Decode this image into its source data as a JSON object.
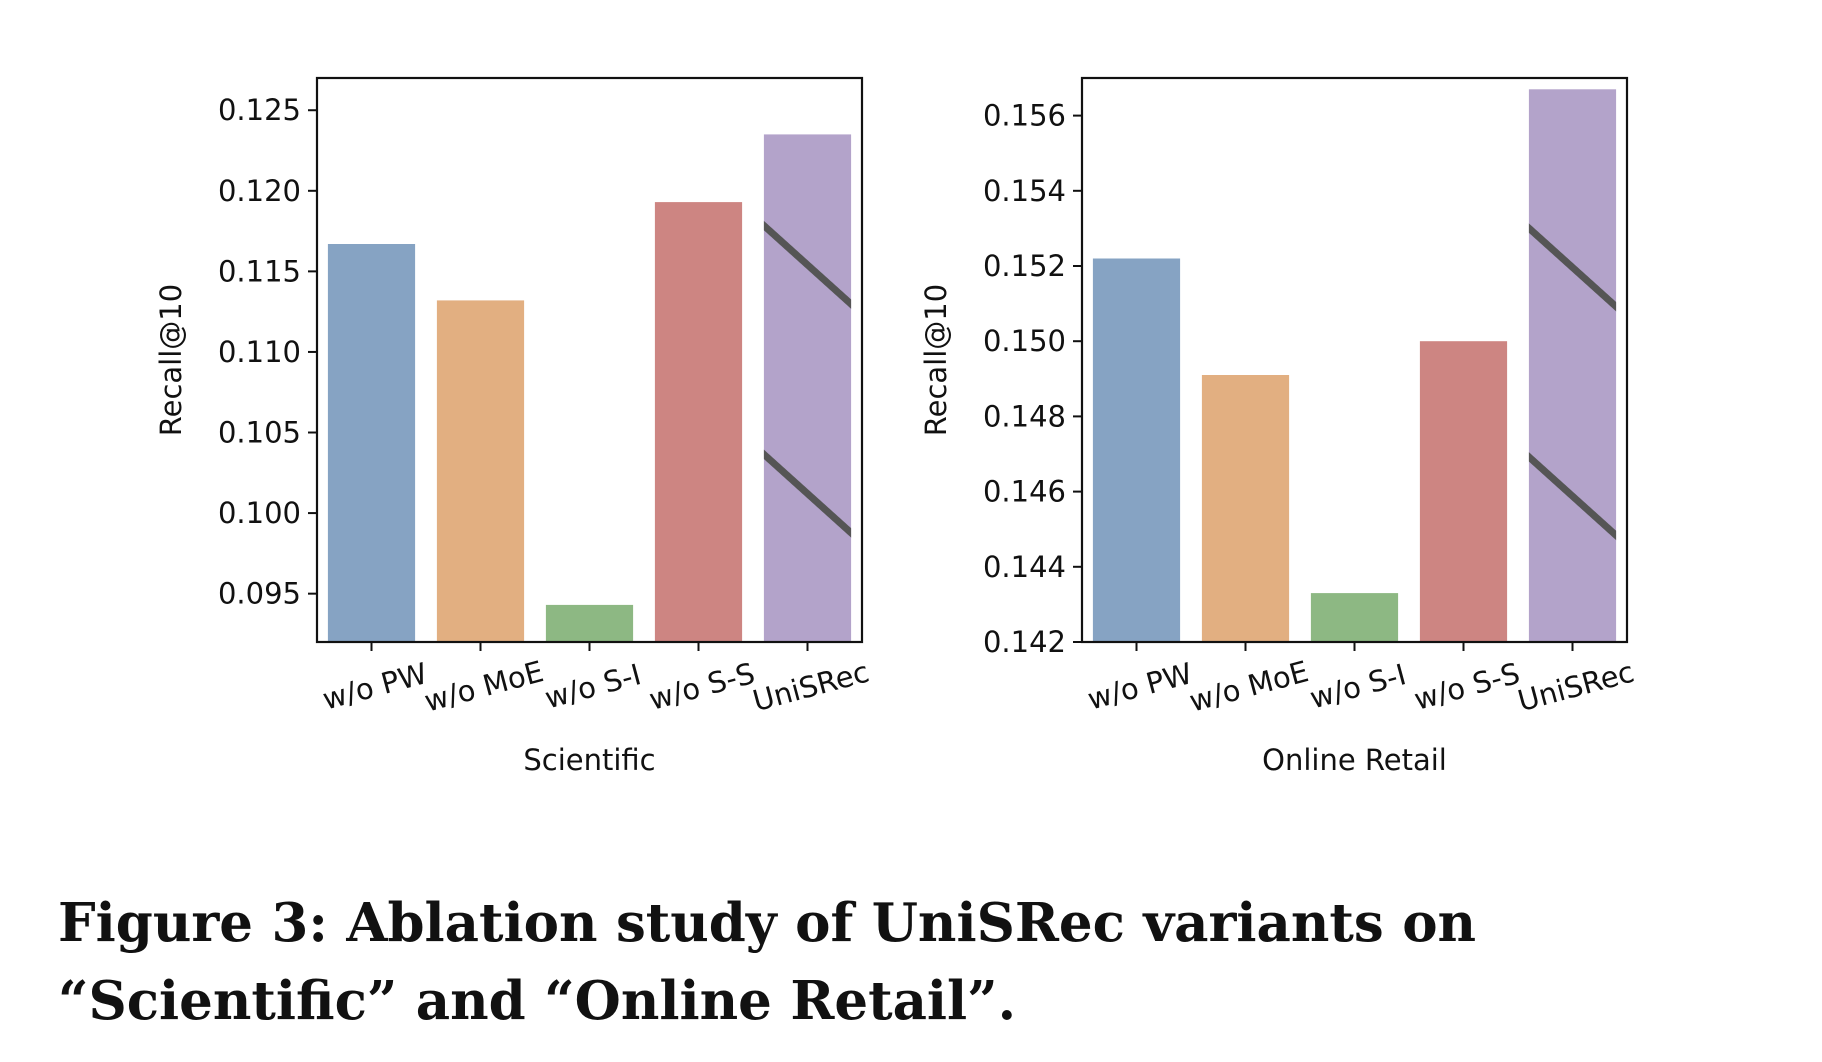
{
  "chart_data": [
    {
      "type": "bar",
      "xlabel": "Scientific",
      "ylabel": "Recall@10",
      "categories": [
        "w/o PW",
        "w/o MoE",
        "w/o S-I",
        "w/o S-S",
        "UniSRec"
      ],
      "values": [
        0.1167,
        0.1132,
        0.0943,
        0.1193,
        0.1235
      ],
      "ylim": [
        0.092,
        0.127
      ],
      "yticks": [
        0.095,
        0.1,
        0.105,
        0.11,
        0.115,
        0.12,
        0.125
      ],
      "ytick_labels": [
        "0.095",
        "0.100",
        "0.105",
        "0.110",
        "0.115",
        "0.120",
        "0.125"
      ],
      "colors": [
        "#86A3C3",
        "#E2AF81",
        "#8DB883",
        "#CD8582",
        "#B3A3CA"
      ],
      "hatched_category": "UniSRec",
      "grid": false,
      "legend": "none"
    },
    {
      "type": "bar",
      "xlabel": "Online Retail",
      "ylabel": "Recall@10",
      "categories": [
        "w/o PW",
        "w/o MoE",
        "w/o S-I",
        "w/o S-S",
        "UniSRec"
      ],
      "values": [
        0.1522,
        0.1491,
        0.1433,
        0.15,
        0.1567
      ],
      "ylim": [
        0.142,
        0.157
      ],
      "yticks": [
        0.142,
        0.144,
        0.146,
        0.148,
        0.15,
        0.152,
        0.154,
        0.156
      ],
      "ytick_labels": [
        "0.142",
        "0.144",
        "0.146",
        "0.148",
        "0.150",
        "0.152",
        "0.154",
        "0.156"
      ],
      "colors": [
        "#86A3C3",
        "#E2AF81",
        "#8DB883",
        "#CD8582",
        "#B3A3CA"
      ],
      "hatched_category": "UniSRec",
      "grid": false,
      "legend": "none"
    }
  ],
  "caption": "Figure 3: Ablation study of UniSRec variants on “Scientific” and “Online Retail”."
}
